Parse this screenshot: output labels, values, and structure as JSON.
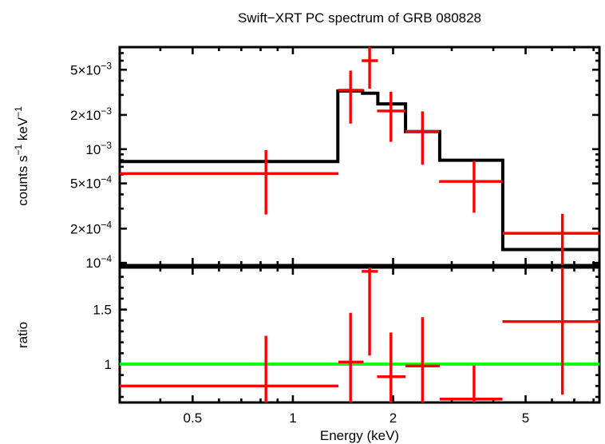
{
  "chart_data": {
    "type": "line",
    "title": "Swift−XRT PC spectrum of GRB 080828",
    "legend": "none",
    "grid": false,
    "x_axis": {
      "label": "Energy (keV)",
      "scale": "log",
      "range_kev": [
        0.302,
        8.33
      ],
      "major_ticks": [
        {
          "value": 0.5,
          "label": "0.5"
        },
        {
          "value": 1,
          "label": "1"
        },
        {
          "value": 2,
          "label": "2"
        },
        {
          "value": 5,
          "label": "5"
        }
      ],
      "minor_ticks": [
        0.4,
        0.6,
        0.7,
        0.8,
        0.9,
        3,
        4,
        6,
        7,
        8
      ]
    },
    "top_panel": {
      "y_label_parts": [
        {
          "t": "counts s"
        },
        {
          "t": "−1",
          "sup": true
        },
        {
          "t": " keV"
        },
        {
          "t": "−1",
          "sup": true
        }
      ],
      "y_scale": "log",
      "range_counts": [
        9.55e-05,
        0.0079
      ],
      "major_ticks": [
        {
          "value": 0.005,
          "main": "5×10",
          "sup": "−3"
        },
        {
          "value": 0.002,
          "main": "2×10",
          "sup": "−3"
        },
        {
          "value": 0.001,
          "main": "10",
          "sup": "−3"
        },
        {
          "value": 0.0005,
          "main": "5×10",
          "sup": "−4"
        },
        {
          "value": 0.0002,
          "main": "2×10",
          "sup": "−4"
        },
        {
          "value": 0.0001,
          "main": "10",
          "sup": "−4"
        }
      ],
      "minor_ticks": [
        0.0003,
        0.0004,
        0.0006,
        0.0007,
        0.0008,
        0.0009,
        0.003,
        0.004,
        0.006,
        0.007
      ],
      "model_bins": [
        {
          "e_lo": 0.3,
          "e_hi": 1.365,
          "rate": 0.00078
        },
        {
          "e_lo": 1.365,
          "e_hi": 1.62,
          "rate": 0.00325
        },
        {
          "e_lo": 1.62,
          "e_hi": 1.8,
          "rate": 0.0031
        },
        {
          "e_lo": 1.8,
          "e_hi": 2.18,
          "rate": 0.0025
        },
        {
          "e_lo": 2.18,
          "e_hi": 2.76,
          "rate": 0.00143
        },
        {
          "e_lo": 2.76,
          "e_hi": 4.27,
          "rate": 0.0008
        },
        {
          "e_lo": 4.27,
          "e_hi": 9.0,
          "rate": 0.000131
        }
      ],
      "data_points": [
        {
          "e": 0.83,
          "e_lo": 0.3,
          "e_hi": 1.37,
          "rate": 0.00061,
          "rate_lo": 0.000266,
          "rate_hi": 0.00098
        },
        {
          "e": 1.49,
          "e_lo": 1.37,
          "e_hi": 1.63,
          "rate": 0.0033,
          "rate_lo": 0.00168,
          "rate_hi": 0.0049
        },
        {
          "e": 1.7,
          "e_lo": 1.61,
          "e_hi": 1.8,
          "rate": 0.006,
          "rate_lo": 0.0034,
          "rate_hi": 0.009
        },
        {
          "e": 1.97,
          "e_lo": 1.79,
          "e_hi": 2.18,
          "rate": 0.00217,
          "rate_lo": 0.00116,
          "rate_hi": 0.0032
        },
        {
          "e": 2.45,
          "e_lo": 2.18,
          "e_hi": 2.75,
          "rate": 0.00143,
          "rate_lo": 0.00073,
          "rate_hi": 0.00215
        },
        {
          "e": 3.5,
          "e_lo": 2.75,
          "e_hi": 4.26,
          "rate": 0.00052,
          "rate_lo": 0.000276,
          "rate_hi": 0.00079
        },
        {
          "e": 6.45,
          "e_lo": 4.27,
          "e_hi": 9.0,
          "rate": 0.000182,
          "rate_lo": 8e-05,
          "rate_hi": 0.00027
        }
      ]
    },
    "ratio_panel": {
      "y_label": "ratio",
      "y_scale": "linear",
      "range_ratio": [
        0.649,
        1.885
      ],
      "major_ticks": [
        {
          "value": 1.5,
          "label": "1.5"
        },
        {
          "value": 1,
          "label": "1"
        }
      ],
      "minor_ticks": [
        0.7,
        0.8,
        0.9,
        1.1,
        1.2,
        1.3,
        1.4,
        1.6,
        1.7,
        1.8
      ],
      "reference_line": 1.0,
      "data_points": [
        {
          "e": 0.83,
          "e_lo": 0.3,
          "e_hi": 1.37,
          "ratio": 0.8,
          "lo": 0.55,
          "hi": 1.26
        },
        {
          "e": 1.49,
          "e_lo": 1.37,
          "e_hi": 1.63,
          "ratio": 1.02,
          "lo": 0.6,
          "hi": 1.47
        },
        {
          "e": 1.7,
          "e_lo": 1.61,
          "e_hi": 1.8,
          "ratio": 1.85,
          "lo": 1.08,
          "hi": 2.0
        },
        {
          "e": 1.97,
          "e_lo": 1.79,
          "e_hi": 2.18,
          "ratio": 0.885,
          "lo": 0.6,
          "hi": 1.29
        },
        {
          "e": 2.45,
          "e_lo": 2.18,
          "e_hi": 2.76,
          "ratio": 0.983,
          "lo": 0.62,
          "hi": 1.43
        },
        {
          "e": 3.5,
          "e_lo": 2.76,
          "e_hi": 4.26,
          "ratio": 0.68,
          "lo": 0.6,
          "hi": 0.987
        },
        {
          "e": 6.45,
          "e_lo": 4.26,
          "e_hi": 9.0,
          "ratio": 1.39,
          "lo": 0.72,
          "hi": 2.0
        }
      ]
    },
    "colors": {
      "data": "#ff0000",
      "model": "#000000",
      "reference_line": "#00ff00",
      "frame": "#000000",
      "background": "#ffffff"
    }
  }
}
